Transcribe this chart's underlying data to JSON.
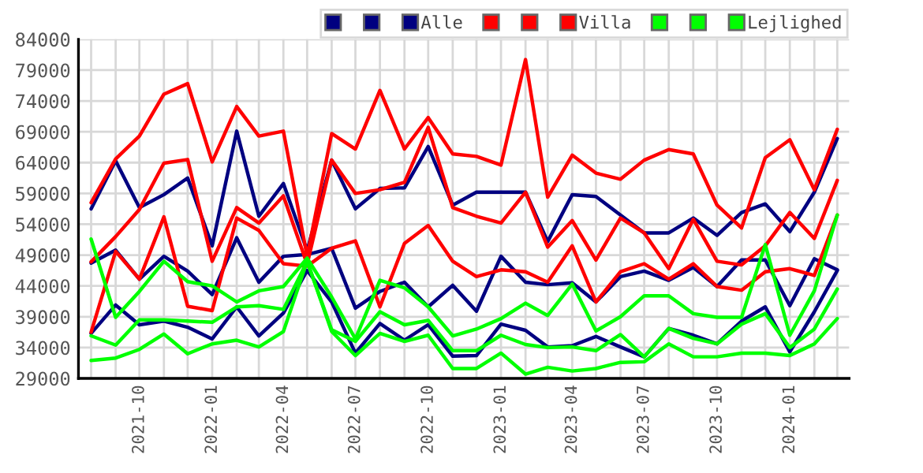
{
  "chart_data": {
    "type": "line",
    "x": [
      "2021-08",
      "2021-09",
      "2021-10",
      "2021-11",
      "2021-12",
      "2022-01",
      "2022-02",
      "2022-03",
      "2022-04",
      "2022-05",
      "2022-06",
      "2022-07",
      "2022-08",
      "2022-09",
      "2022-10",
      "2022-11",
      "2022-12",
      "2023-01",
      "2023-02",
      "2023-03",
      "2023-04",
      "2023-05",
      "2023-06",
      "2023-07",
      "2023-08",
      "2023-09",
      "2023-10",
      "2023-11",
      "2023-12",
      "2024-01",
      "2024-02",
      "2024-03"
    ],
    "series": [
      {
        "color": "#000080",
        "values": [
          56500,
          64300,
          56700,
          58800,
          61500,
          50500,
          69100,
          55300,
          60600,
          49700,
          64400,
          56500,
          59800,
          59900,
          66600,
          57100,
          59200,
          59200,
          59200,
          51200,
          58800,
          58500,
          55500,
          52600,
          52600,
          55000,
          52200,
          55900,
          57300,
          52800,
          59200,
          67900
        ]
      },
      {
        "color": "#000080",
        "values": [
          36300,
          40900,
          37700,
          38300,
          37300,
          35400,
          40600,
          35900,
          39600,
          46500,
          41400,
          33100,
          37900,
          35200,
          37700,
          32600,
          32700,
          37800,
          36800,
          34100,
          34300,
          35800,
          34100,
          32500,
          37100,
          36000,
          34600,
          38300,
          40600,
          33300,
          39800,
          46500
        ]
      },
      {
        "name": "Alle",
        "color": "#000080",
        "values": [
          47700,
          49800,
          45100,
          48800,
          46400,
          42600,
          51800,
          44600,
          48800,
          49100,
          50100,
          40400,
          43100,
          44600,
          40600,
          44100,
          39900,
          48800,
          44600,
          44200,
          44500,
          41400,
          45500,
          46400,
          44900,
          47000,
          43900,
          48200,
          48200,
          40800,
          48400,
          46600
        ]
      },
      {
        "color": "#ff0000",
        "values": [
          57500,
          64600,
          68300,
          75100,
          76800,
          64100,
          73100,
          68300,
          69100,
          48800,
          68700,
          66200,
          75700,
          66200,
          71300,
          65400,
          65000,
          63600,
          80700,
          58400,
          65200,
          62300,
          61300,
          64400,
          66100,
          65400,
          57100,
          53400,
          64800,
          67700,
          59600,
          69400
        ]
      },
      {
        "color": "#ff0000",
        "values": [
          36500,
          49600,
          45100,
          55200,
          40700,
          40000,
          55000,
          53000,
          47600,
          47200,
          50100,
          51300,
          40600,
          50900,
          53800,
          48000,
          45500,
          46600,
          46300,
          44600,
          50500,
          41400,
          46300,
          47600,
          45100,
          47600,
          43900,
          43300,
          46300,
          46800,
          45700,
          55500
        ]
      },
      {
        "name": "Villa",
        "color": "#ff0000",
        "values": [
          47900,
          52000,
          56400,
          63900,
          64500,
          48000,
          56700,
          54200,
          58600,
          47500,
          64400,
          59000,
          59600,
          60800,
          69700,
          56700,
          55300,
          54200,
          59200,
          50300,
          54600,
          48200,
          55000,
          52600,
          46800,
          54800,
          48000,
          47400,
          50500,
          55900,
          51700,
          61100
        ]
      },
      {
        "color": "#00ff00",
        "values": [
          51600,
          38900,
          43100,
          48000,
          44700,
          44000,
          41400,
          43200,
          43900,
          48500,
          42200,
          35400,
          44900,
          43700,
          40600,
          35900,
          37000,
          38700,
          41200,
          39200,
          44300,
          36700,
          39000,
          42400,
          42400,
          39500,
          38900,
          38900,
          50700,
          36000,
          43200,
          55500
        ]
      },
      {
        "color": "#00ff00",
        "values": [
          31900,
          32300,
          33700,
          36200,
          33000,
          34600,
          35200,
          34100,
          36600,
          48000,
          36600,
          32700,
          36300,
          35000,
          36000,
          30600,
          30600,
          33100,
          29700,
          30800,
          30200,
          30600,
          31600,
          31700,
          34600,
          32500,
          32500,
          33100,
          33100,
          32700,
          34600,
          38700
        ]
      },
      {
        "name": "Lejlighed",
        "color": "#00ff00",
        "values": [
          35900,
          34400,
          38500,
          38500,
          38300,
          38100,
          40600,
          40800,
          40200,
          48000,
          36900,
          35000,
          39800,
          37700,
          38400,
          33500,
          33500,
          36000,
          34500,
          34000,
          34100,
          33500,
          36100,
          32500,
          37100,
          35500,
          34600,
          37800,
          39500,
          34000,
          37000,
          43500
        ]
      }
    ],
    "xlim": [
      "2021-07-16",
      "2024-03-16"
    ],
    "xticks": [
      {
        "value": "2021-08",
        "label": null
      },
      {
        "value": "2021-09",
        "label": null
      },
      {
        "value": "2021-10",
        "label": "2021-10"
      },
      {
        "value": "2021-11",
        "label": null
      },
      {
        "value": "2021-12",
        "label": null
      },
      {
        "value": "2022-01",
        "label": "2022-01"
      },
      {
        "value": "2022-02",
        "label": null
      },
      {
        "value": "2022-03",
        "label": null
      },
      {
        "value": "2022-04",
        "label": "2022-04"
      },
      {
        "value": "2022-05",
        "label": null
      },
      {
        "value": "2022-06",
        "label": null
      },
      {
        "value": "2022-07",
        "label": "2022-07"
      },
      {
        "value": "2022-08",
        "label": null
      },
      {
        "value": "2022-09",
        "label": null
      },
      {
        "value": "2022-10",
        "label": "2022-10"
      },
      {
        "value": "2022-11",
        "label": null
      },
      {
        "value": "2022-12",
        "label": null
      },
      {
        "value": "2023-01",
        "label": "2023-01"
      },
      {
        "value": "2023-02",
        "label": null
      },
      {
        "value": "2023-03",
        "label": null
      },
      {
        "value": "2023-04",
        "label": "2023-04"
      },
      {
        "value": "2023-05",
        "label": null
      },
      {
        "value": "2023-06",
        "label": null
      },
      {
        "value": "2023-07",
        "label": "2023-07"
      },
      {
        "value": "2023-08",
        "label": null
      },
      {
        "value": "2023-09",
        "label": null
      },
      {
        "value": "2023-10",
        "label": "2023-10"
      },
      {
        "value": "2023-11",
        "label": null
      },
      {
        "value": "2023-12",
        "label": null
      },
      {
        "value": "2024-01",
        "label": "2024-01"
      },
      {
        "value": "2024-02",
        "label": null
      },
      {
        "value": "2024-03",
        "label": null
      }
    ],
    "ylim": [
      29000,
      84000
    ],
    "yticks": [
      29000,
      34000,
      39000,
      44000,
      49000,
      54000,
      59000,
      64000,
      69000,
      74000,
      79000,
      84000
    ],
    "grid": true,
    "legend": "top right",
    "marker": "none",
    "line_style": "solid"
  }
}
